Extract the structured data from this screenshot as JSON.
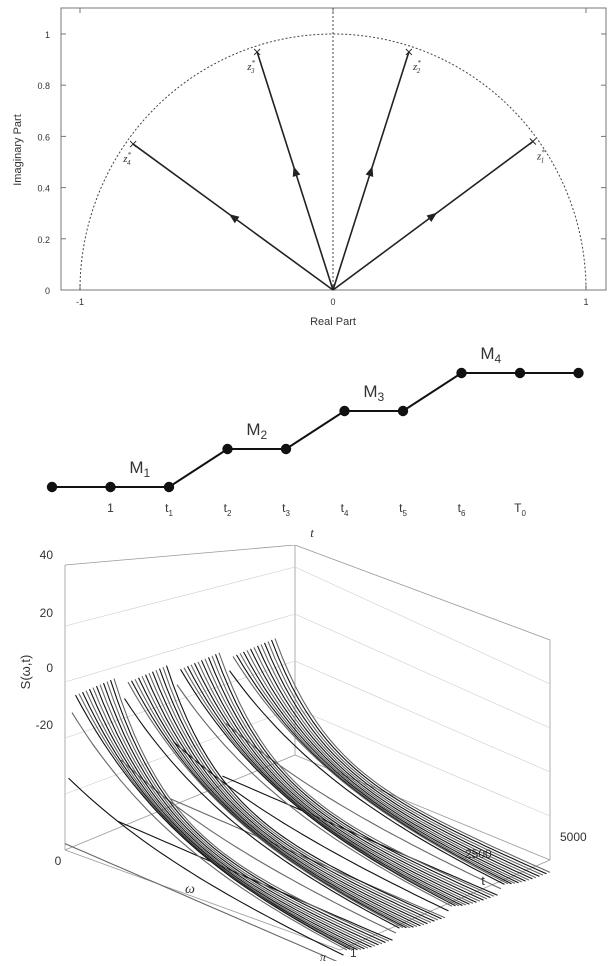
{
  "chart_data": [
    {
      "type": "scatter",
      "xlabel": "Real Part",
      "ylabel": "Imaginary Part",
      "xlim": [
        -1.1,
        1.1
      ],
      "ylim": [
        0,
        1.05
      ],
      "xticks": [
        "-1",
        "0",
        "1"
      ],
      "yticks": [
        "0",
        "0.2",
        "0.4",
        "0.6",
        "0.8",
        "1"
      ],
      "unit_semicircle": true,
      "vectors": [
        {
          "label": "z1*",
          "base": "z",
          "sub": "1",
          "x": 0.79,
          "y": 0.58
        },
        {
          "label": "z2*",
          "base": "z",
          "sub": "2",
          "x": 0.3,
          "y": 0.93
        },
        {
          "label": "z3*",
          "base": "z",
          "sub": "3",
          "x": -0.3,
          "y": 0.93
        },
        {
          "label": "z4*",
          "base": "z",
          "sub": "4",
          "x": -0.79,
          "y": 0.57
        }
      ]
    },
    {
      "type": "line",
      "xlabel": "t",
      "ticks": [
        {
          "base": "1",
          "sub": ""
        },
        {
          "base": "t",
          "sub": "1"
        },
        {
          "base": "t",
          "sub": "2"
        },
        {
          "base": "t",
          "sub": "3"
        },
        {
          "base": "t",
          "sub": "4"
        },
        {
          "base": "t",
          "sub": "5"
        },
        {
          "base": "t",
          "sub": "6"
        },
        {
          "base": "T",
          "sub": "0"
        }
      ],
      "x": [
        0,
        1,
        2,
        3,
        4,
        5,
        6,
        7,
        8,
        9
      ],
      "level": [
        0,
        0,
        0,
        1,
        1,
        2,
        2,
        3,
        3,
        3
      ],
      "segment_labels": [
        {
          "base": "M",
          "sub": "1",
          "x": 1.5,
          "level": 0
        },
        {
          "base": "M",
          "sub": "2",
          "x": 3.5,
          "level": 1
        },
        {
          "base": "M",
          "sub": "3",
          "x": 5.5,
          "level": 2
        },
        {
          "base": "M",
          "sub": "4",
          "x": 7.5,
          "level": 3
        }
      ]
    },
    {
      "type": "surface",
      "zlabel": "S(ω,t)",
      "xlabel": "ω",
      "ylabel": "t",
      "zticks": [
        "-20",
        "0",
        "20",
        "40"
      ],
      "omega_ticks": [
        "0",
        "π"
      ],
      "t_ticks": [
        "1",
        "2500",
        "5000"
      ],
      "zlim": [
        -30,
        45
      ],
      "segments": 4,
      "surface_color": "#111111"
    }
  ]
}
